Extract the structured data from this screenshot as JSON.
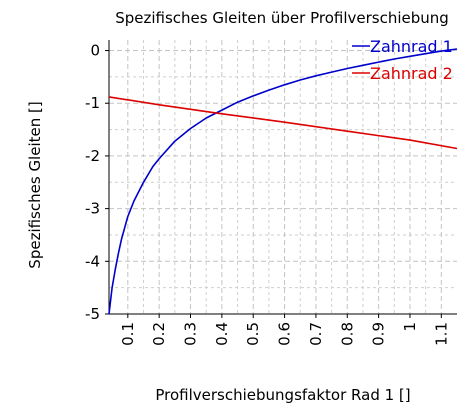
{
  "chart_data": {
    "type": "line",
    "title": "Spezifisches Gleiten über Profilverschiebung",
    "xlabel": "Profilverschiebungsfaktor Rad 1 []",
    "ylabel": "Spezifisches Gleiten []",
    "xlim": [
      0.04,
      1.15
    ],
    "ylim": [
      -5,
      0.2
    ],
    "x_ticks": [
      0.1,
      0.2,
      0.3,
      0.4,
      0.5,
      0.6,
      0.7,
      0.8,
      0.9,
      1,
      1.1
    ],
    "x_tick_labels": [
      "0.1",
      "0.2",
      "0.3",
      "0.4",
      "0.5",
      "0.6",
      "0.7",
      "0.8",
      "0.9",
      "1",
      "1.1"
    ],
    "y_ticks": [
      0,
      -1,
      -2,
      -3,
      -4,
      -5
    ],
    "y_tick_labels": [
      "0",
      "-1",
      "-2",
      "-3",
      "-4",
      "-5"
    ],
    "x_minor_step": 0.05,
    "y_minor_step": 0.5,
    "grid": true,
    "legend_position": "top-right",
    "series": [
      {
        "name": "Zahnrad 1",
        "color": "#0000cc",
        "x": [
          0.04,
          0.05,
          0.06,
          0.07,
          0.08,
          0.1,
          0.12,
          0.15,
          0.18,
          0.2,
          0.25,
          0.3,
          0.35,
          0.4,
          0.45,
          0.5,
          0.55,
          0.6,
          0.65,
          0.7,
          0.75,
          0.8,
          0.85,
          0.9,
          0.95,
          1.0,
          1.05,
          1.1,
          1.15
        ],
        "y": [
          -5.0,
          -4.5,
          -4.15,
          -3.85,
          -3.58,
          -3.15,
          -2.85,
          -2.5,
          -2.2,
          -2.05,
          -1.72,
          -1.48,
          -1.28,
          -1.13,
          -0.98,
          -0.86,
          -0.75,
          -0.65,
          -0.56,
          -0.48,
          -0.41,
          -0.34,
          -0.28,
          -0.22,
          -0.16,
          -0.11,
          -0.06,
          -0.01,
          0.03
        ]
      },
      {
        "name": "Zahnrad 2",
        "color": "#dd0000",
        "x": [
          0.04,
          0.2,
          0.4,
          0.6,
          0.8,
          1.0,
          1.15
        ],
        "y": [
          -0.88,
          -1.03,
          -1.2,
          -1.36,
          -1.53,
          -1.7,
          -1.86
        ]
      }
    ]
  }
}
